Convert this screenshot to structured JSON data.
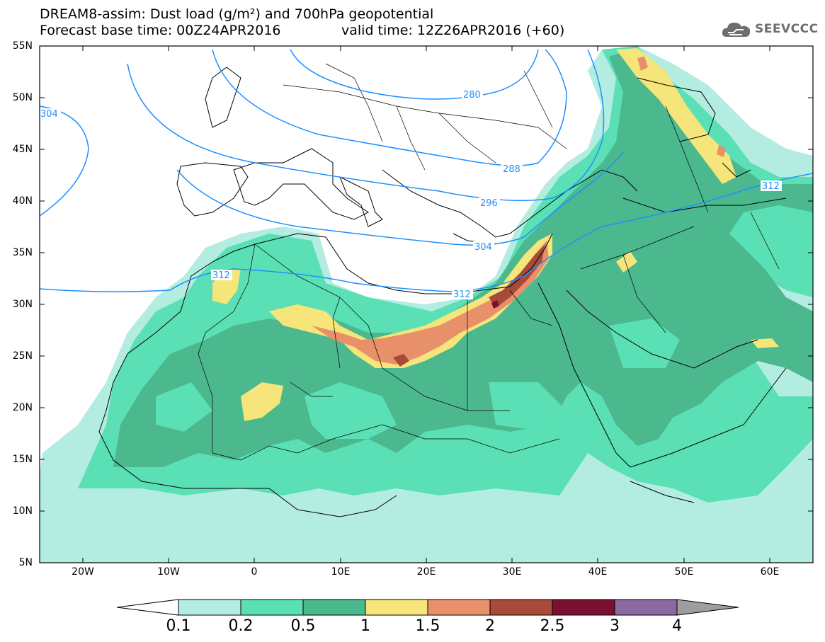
{
  "title": {
    "line1": "DREAM8-assim: Dust load (g/m²) and 700hPa geopotential",
    "line2": "Forecast base time: 00Z24APR2016",
    "line2b": "valid time: 12Z26APR2016 (+60)"
  },
  "logo": {
    "icon": "cloud-icon",
    "text": "SEEVCCC"
  },
  "map_data": {
    "extent": {
      "lon": [
        -25,
        65
      ],
      "lat": [
        5,
        55
      ]
    },
    "lat_labels": [
      "55N",
      "50N",
      "45N",
      "40N",
      "35N",
      "30N",
      "25N",
      "20N",
      "15N",
      "10N",
      "5N"
    ],
    "lon_labels": [
      "20W",
      "10W",
      "0",
      "10E",
      "20E",
      "30E",
      "40E",
      "50E",
      "60E"
    ],
    "contour_labels": [
      "304",
      "280",
      "288",
      "296",
      "304",
      "312",
      "312",
      "312"
    ],
    "contour_color": "#1e90ff"
  },
  "colorbar": {
    "labels": [
      "0.1",
      "0.2",
      "0.5",
      "1",
      "1.5",
      "2",
      "2.5",
      "3",
      "4"
    ],
    "colors": [
      "#ffffff",
      "#b3ece0",
      "#5ae0b4",
      "#4cb88e",
      "#f5e57a",
      "#e8906a",
      "#a84a3a",
      "#7a1030",
      "#8a6aa0",
      "#9e9e9e"
    ]
  }
}
